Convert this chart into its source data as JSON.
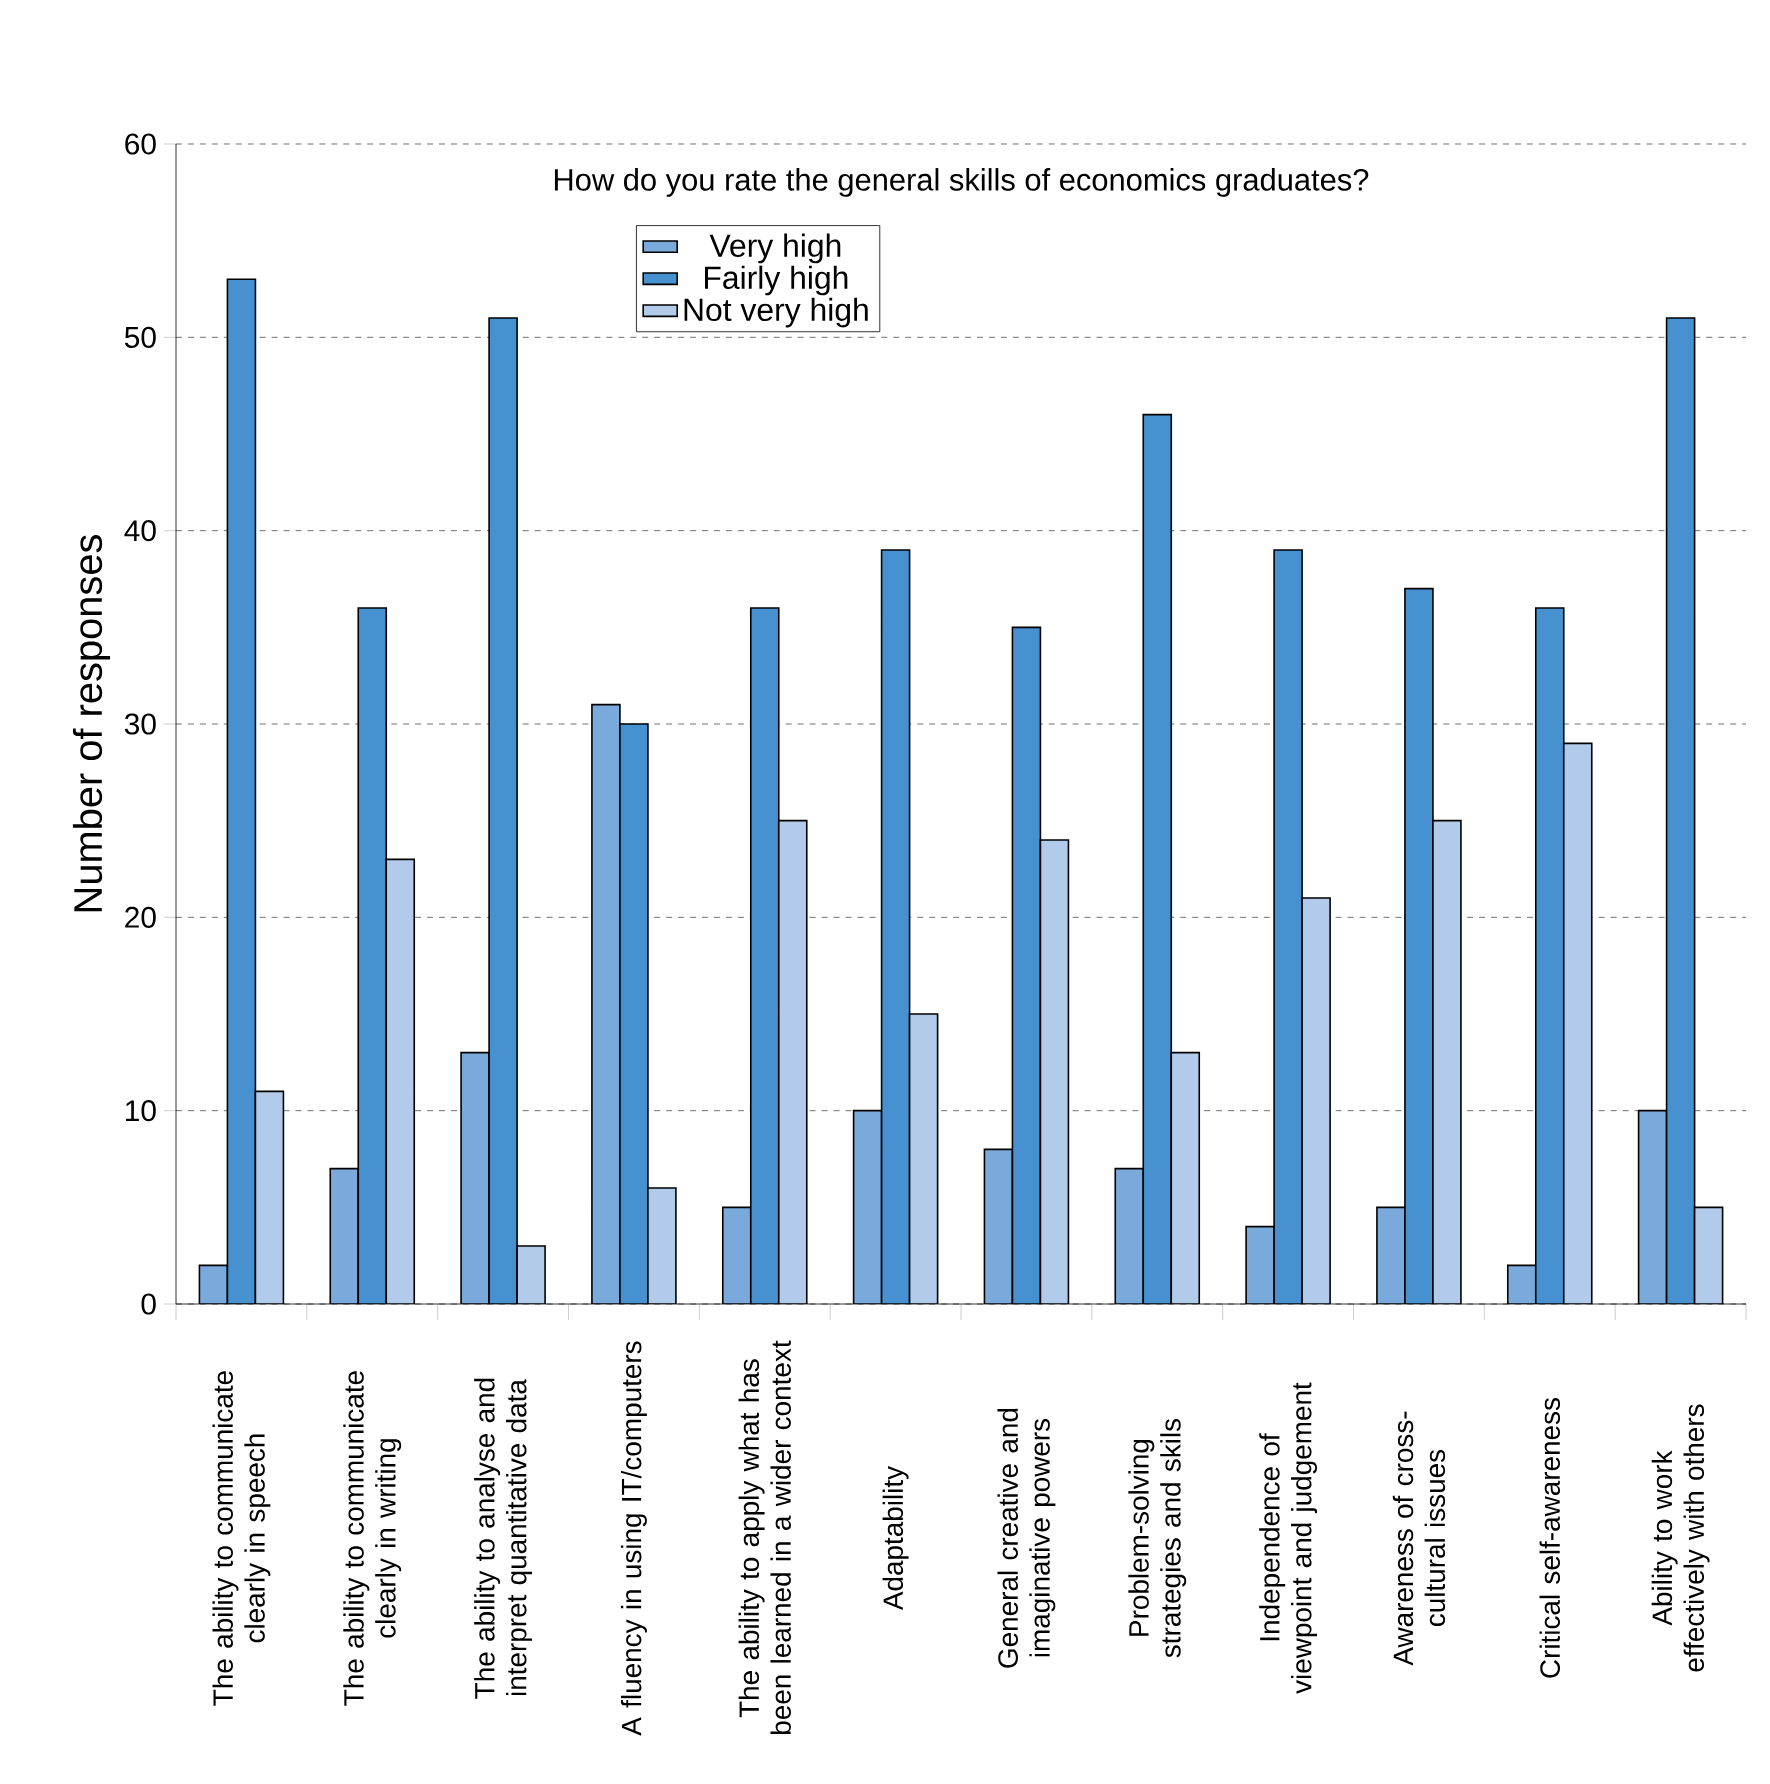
{
  "chart_data": {
    "type": "bar",
    "title": "How do you rate the general skills of economics graduates?",
    "ylabel": "Number of responses",
    "categories": [
      "The ability to communicate clearly in speech",
      "The ability to communicate clearly in writing",
      "The ability to analyse and interpret quantitative data",
      "A fluency in using IT/computers",
      "The ability to apply what has been learned in a wider context",
      "Adaptability",
      "General creative and imaginative powers",
      "Problem-solving strategies and skils",
      "Independence of viewpoint and judgement",
      "Awareness of cross-cultural issues",
      "Critical self-awareness",
      "Ability to work effectively with others"
    ],
    "series": [
      {
        "name": "Very high",
        "color": "#7aaadb",
        "values": [
          2,
          7,
          13,
          31,
          5,
          10,
          8,
          7,
          4,
          5,
          2,
          10
        ]
      },
      {
        "name": "Fairly high",
        "color": "#4791d0",
        "values": [
          53,
          36,
          51,
          30,
          36,
          39,
          35,
          46,
          39,
          37,
          36,
          51
        ]
      },
      {
        "name": "Not very high",
        "color": "#b3cbea",
        "values": [
          11,
          23,
          3,
          6,
          25,
          15,
          24,
          13,
          21,
          25,
          29,
          5
        ]
      }
    ],
    "ylim": [
      0,
      60
    ],
    "yticks": [
      0,
      10,
      20,
      30,
      40,
      50,
      60
    ],
    "grid": "y",
    "legend": "top"
  }
}
